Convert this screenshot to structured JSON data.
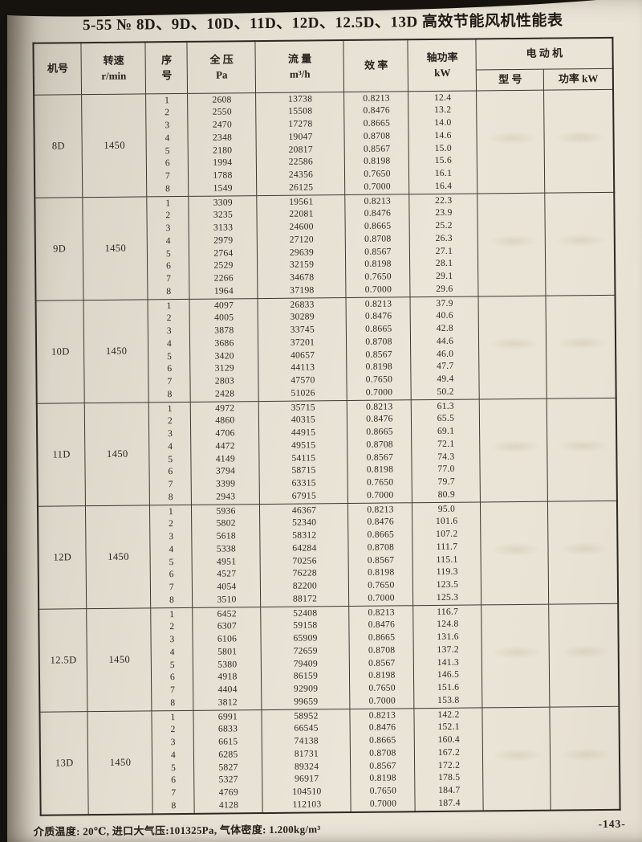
{
  "page": {
    "title": "5-55 № 8D、9D、10D、11D、12D、12.5D、13D 高效节能风机性能表",
    "footnote": "介质温度: 20℃, 进口大气压:101325Pa, 气体密度: 1.200kg/m³",
    "page_number": "-143-"
  },
  "colors": {
    "paper": "#e8e2d5",
    "ink": "#29251f",
    "edge_shadow": "#16120d"
  },
  "table": {
    "headers": {
      "machine": "机号",
      "speed": "转速\nr/min",
      "serial": "序\n号",
      "pressure": "全 压\nPa",
      "flow": "流 量\nm³/h",
      "efficiency": "效 率",
      "shaft_power": "轴功率\nkW",
      "motor": "电 动 机",
      "motor_model": "型 号",
      "motor_power": "功率 kW"
    },
    "row_numbers": [
      "1",
      "2",
      "3",
      "4",
      "5",
      "6",
      "7",
      "8"
    ],
    "blocks": [
      {
        "machine": "8D",
        "speed": "1450",
        "pressure": [
          "2608",
          "2550",
          "2470",
          "2348",
          "2180",
          "1994",
          "1788",
          "1549"
        ],
        "flow": [
          "13738",
          "15508",
          "17278",
          "19047",
          "20817",
          "22586",
          "24356",
          "26125"
        ],
        "efficiency": [
          "0.8213",
          "0.8476",
          "0.8665",
          "0.8708",
          "0.8567",
          "0.8198",
          "0.7650",
          "0.7000"
        ],
        "shaft_power": [
          "12.4",
          "13.2",
          "14.0",
          "14.6",
          "15.0",
          "15.6",
          "16.1",
          "16.4"
        ],
        "motor_model": "",
        "motor_power": ""
      },
      {
        "machine": "9D",
        "speed": "1450",
        "pressure": [
          "3309",
          "3235",
          "3133",
          "2979",
          "2764",
          "2529",
          "2266",
          "1964"
        ],
        "flow": [
          "19561",
          "22081",
          "24600",
          "27120",
          "29639",
          "32159",
          "34678",
          "37198"
        ],
        "efficiency": [
          "0.8213",
          "0.8476",
          "0.8665",
          "0.8708",
          "0.8567",
          "0.8198",
          "0.7650",
          "0.7000"
        ],
        "shaft_power": [
          "22.3",
          "23.9",
          "25.2",
          "26.3",
          "27.1",
          "28.1",
          "29.1",
          "29.6"
        ],
        "motor_model": "",
        "motor_power": ""
      },
      {
        "machine": "10D",
        "speed": "1450",
        "pressure": [
          "4097",
          "4005",
          "3878",
          "3686",
          "3420",
          "3129",
          "2803",
          "2428"
        ],
        "flow": [
          "26833",
          "30289",
          "33745",
          "37201",
          "40657",
          "44113",
          "47570",
          "51026"
        ],
        "efficiency": [
          "0.8213",
          "0.8476",
          "0.8665",
          "0.8708",
          "0.8567",
          "0.8198",
          "0.7650",
          "0.7000"
        ],
        "shaft_power": [
          "37.9",
          "40.6",
          "42.8",
          "44.6",
          "46.0",
          "47.7",
          "49.4",
          "50.2"
        ],
        "motor_model": "",
        "motor_power": ""
      },
      {
        "machine": "11D",
        "speed": "1450",
        "pressure": [
          "4972",
          "4860",
          "4706",
          "4472",
          "4149",
          "3794",
          "3399",
          "2943"
        ],
        "flow": [
          "35715",
          "40315",
          "44915",
          "49515",
          "54115",
          "58715",
          "63315",
          "67915"
        ],
        "efficiency": [
          "0.8213",
          "0.8476",
          "0.8665",
          "0.8708",
          "0.8567",
          "0.8198",
          "0.7650",
          "0.7000"
        ],
        "shaft_power": [
          "61.3",
          "65.5",
          "69.1",
          "72.1",
          "74.3",
          "77.0",
          "79.7",
          "80.9"
        ],
        "motor_model": "",
        "motor_power": ""
      },
      {
        "machine": "12D",
        "speed": "1450",
        "pressure": [
          "5936",
          "5802",
          "5618",
          "5338",
          "4951",
          "4527",
          "4054",
          "3510"
        ],
        "flow": [
          "46367",
          "52340",
          "58312",
          "64284",
          "70256",
          "76228",
          "82200",
          "88172"
        ],
        "efficiency": [
          "0.8213",
          "0.8476",
          "0.8665",
          "0.8708",
          "0.8567",
          "0.8198",
          "0.7650",
          "0.7000"
        ],
        "shaft_power": [
          "95.0",
          "101.6",
          "107.2",
          "111.7",
          "115.1",
          "119.3",
          "123.5",
          "125.3"
        ],
        "motor_model": "",
        "motor_power": ""
      },
      {
        "machine": "12.5D",
        "speed": "1450",
        "pressure": [
          "6452",
          "6307",
          "6106",
          "5801",
          "5380",
          "4918",
          "4404",
          "3812"
        ],
        "flow": [
          "52408",
          "59158",
          "65909",
          "72659",
          "79409",
          "86159",
          "92909",
          "99659"
        ],
        "efficiency": [
          "0.8213",
          "0.8476",
          "0.8665",
          "0.8708",
          "0.8567",
          "0.8198",
          "0.7650",
          "0.7000"
        ],
        "shaft_power": [
          "116.7",
          "124.8",
          "131.6",
          "137.2",
          "141.3",
          "146.5",
          "151.6",
          "153.8"
        ],
        "motor_model": "",
        "motor_power": ""
      },
      {
        "machine": "13D",
        "speed": "1450",
        "pressure": [
          "6991",
          "6833",
          "6615",
          "6285",
          "5827",
          "5327",
          "4769",
          "4128"
        ],
        "flow": [
          "58952",
          "66545",
          "74138",
          "81731",
          "89324",
          "96917",
          "104510",
          "112103"
        ],
        "efficiency": [
          "0.8213",
          "0.8476",
          "0.8665",
          "0.8708",
          "0.8567",
          "0.8198",
          "0.7650",
          "0.7000"
        ],
        "shaft_power": [
          "142.2",
          "152.1",
          "160.4",
          "167.2",
          "172.2",
          "178.5",
          "184.7",
          "187.4"
        ],
        "motor_model": "",
        "motor_power": ""
      }
    ]
  }
}
